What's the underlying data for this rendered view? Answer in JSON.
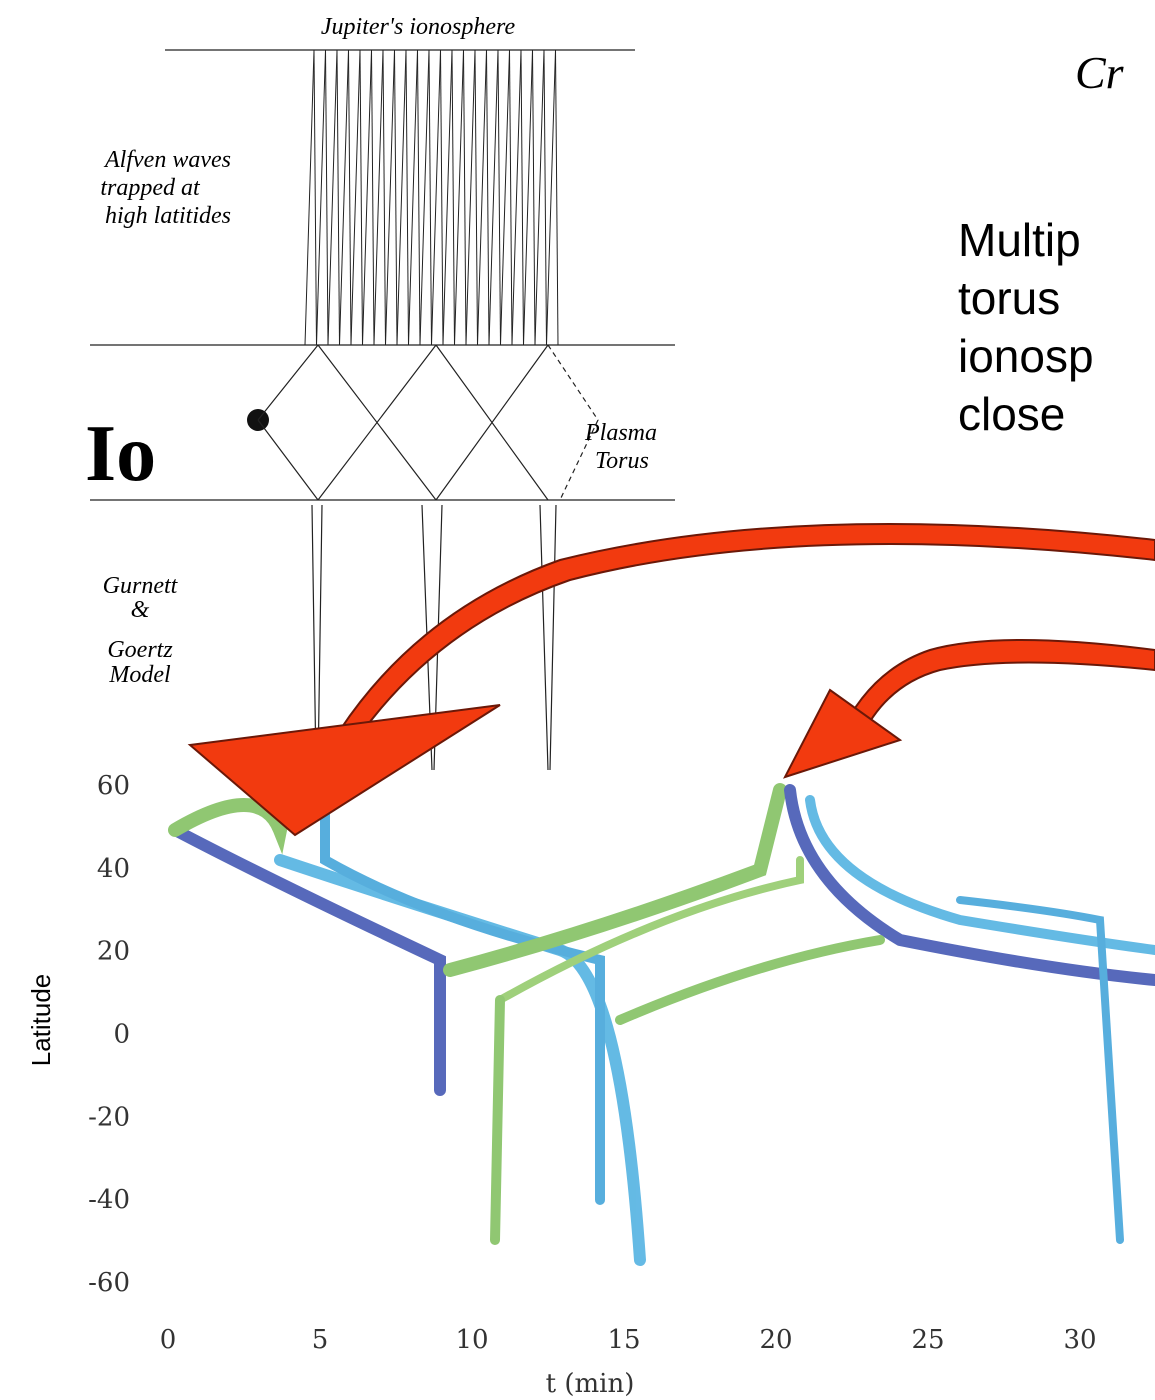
{
  "diagram": {
    "top_label": "Jupiter's ionosphere",
    "alfven_label": [
      "Alfven waves",
      "trapped at",
      "high latitides"
    ],
    "io_label": "Io",
    "torus_label": [
      "Plasma",
      "Torus"
    ],
    "model_label": [
      "Gurnett",
      "&",
      "Goertz",
      "Model"
    ]
  },
  "slide": {
    "title": "Cr",
    "body": [
      "Multip",
      "torus",
      "ionosp",
      "close"
    ]
  },
  "plot": {
    "ylabel": "Latitude",
    "xlabel": "t (min)",
    "yticks": [
      60,
      40,
      20,
      0,
      -20,
      -40,
      -60
    ],
    "xticks": [
      0,
      5,
      10,
      15,
      20,
      25,
      30
    ]
  }
}
